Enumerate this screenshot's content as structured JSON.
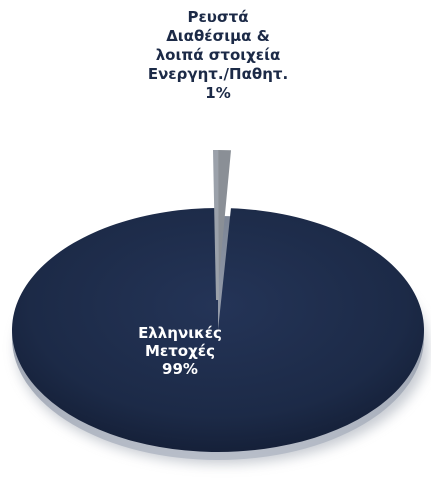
{
  "chart_data": {
    "type": "pie",
    "title": "",
    "categories": [
      "Ρευστά Διαθέσιμα & λοιπά στοιχεία Ενεργητ./Παθητ.",
      "Ελληνικές Μετοχές"
    ],
    "values": [
      1,
      99
    ],
    "unit": "%",
    "colors": [
      "#8a8f96",
      "#1c2a47"
    ],
    "label_colors": [
      "#1c2a47",
      "#ffffff"
    ],
    "labels": [
      {
        "lines": [
          "Ρευστά",
          "Διαθέσιμα &",
          "λοιπά στοιχεία",
          "Ενεργητ./Παθητ.",
          "1%"
        ]
      },
      {
        "lines": [
          "Ελληνικές",
          "Μετοχές",
          "99%"
        ]
      }
    ],
    "legend": "none",
    "style": "3d-perspective"
  }
}
